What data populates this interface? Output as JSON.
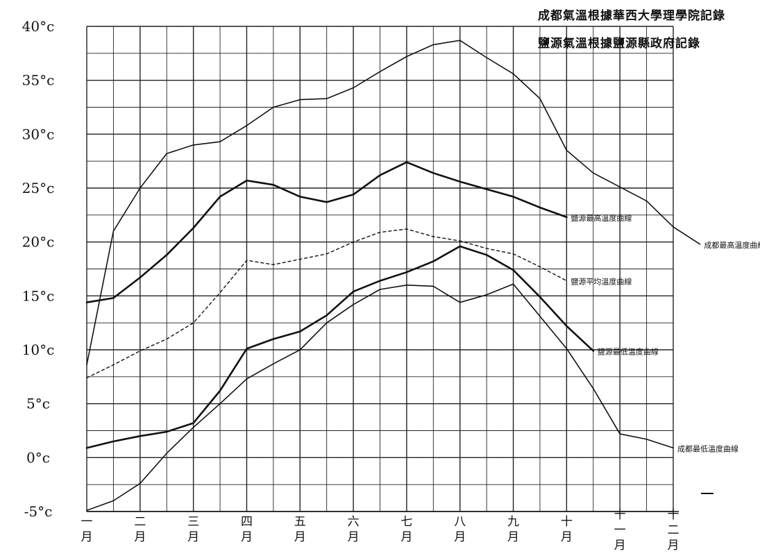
{
  "notes": {
    "source_1": "成都氣溫根據華西大學理學院記錄",
    "source_2": "鹽源氣溫根據鹽源縣政府記錄"
  },
  "chart_data": {
    "type": "line",
    "x_categories": [
      [
        "一",
        "月"
      ],
      [
        "二",
        "月"
      ],
      [
        "三",
        "月"
      ],
      [
        "四",
        "月"
      ],
      [
        "五",
        "月"
      ],
      [
        "六",
        "月"
      ],
      [
        "七",
        "月"
      ],
      [
        "八",
        "月"
      ],
      [
        "九",
        "月"
      ],
      [
        "十",
        "月"
      ],
      [
        "十",
        "一",
        "月"
      ],
      [
        "十",
        "二",
        "月"
      ]
    ],
    "y_ticks": [
      "40°c",
      "35°c",
      "30°c",
      "25°c",
      "20°c",
      "15°c",
      "10°c",
      "5°c",
      "0°c",
      "-5°c"
    ],
    "ylim": [
      -5,
      40
    ],
    "grid": true,
    "series": [
      {
        "name": "成都最高温度曲線",
        "style": "solid-thin",
        "points": [
          [
            0,
            8.6
          ],
          [
            0.5,
            21
          ],
          [
            1,
            25
          ],
          [
            1.5,
            28.2
          ],
          [
            2,
            29
          ],
          [
            2.5,
            29.3
          ],
          [
            3,
            30.8
          ],
          [
            3.5,
            32.5
          ],
          [
            4,
            33.2
          ],
          [
            4.5,
            33.3
          ],
          [
            5,
            34.3
          ],
          [
            5.5,
            35.8
          ],
          [
            6,
            37.2
          ],
          [
            6.5,
            38.3
          ],
          [
            7,
            38.7
          ],
          [
            7.5,
            37.1
          ],
          [
            8,
            35.6
          ],
          [
            8.5,
            33.3
          ],
          [
            9,
            28.5
          ],
          [
            9.5,
            26.4
          ],
          [
            10,
            25.1
          ],
          [
            10.5,
            23.8
          ],
          [
            11,
            21.4
          ],
          [
            11.5,
            19.8
          ]
        ]
      },
      {
        "name": "鹽源最高溫度曲線",
        "style": "solid-bold",
        "points": [
          [
            0,
            14.4
          ],
          [
            0.5,
            14.8
          ],
          [
            1,
            16.7
          ],
          [
            1.5,
            18.8
          ],
          [
            2,
            21.3
          ],
          [
            2.5,
            24.2
          ],
          [
            3,
            25.7
          ],
          [
            3.5,
            25.3
          ],
          [
            4,
            24.2
          ],
          [
            4.5,
            23.7
          ],
          [
            5,
            24.4
          ],
          [
            5.5,
            26.2
          ],
          [
            6,
            27.4
          ],
          [
            6.5,
            26.4
          ],
          [
            7,
            25.6
          ],
          [
            7.5,
            24.9
          ],
          [
            8,
            24.2
          ],
          [
            8.5,
            23.2
          ],
          [
            9,
            22.3
          ]
        ]
      },
      {
        "name": "鹽源平均溫度曲線",
        "style": "dashed",
        "points": [
          [
            0,
            7.4
          ],
          [
            0.5,
            8.6
          ],
          [
            1,
            9.9
          ],
          [
            1.5,
            11
          ],
          [
            2,
            12.5
          ],
          [
            2.5,
            15.3
          ],
          [
            3,
            18.3
          ],
          [
            3.5,
            17.9
          ],
          [
            4,
            18.4
          ],
          [
            4.5,
            18.9
          ],
          [
            5,
            20
          ],
          [
            5.5,
            20.9
          ],
          [
            6,
            21.2
          ],
          [
            6.5,
            20.5
          ],
          [
            7,
            20.1
          ],
          [
            7.5,
            19.4
          ],
          [
            8,
            18.9
          ],
          [
            8.5,
            17.7
          ],
          [
            9,
            16.4
          ]
        ]
      },
      {
        "name": "鹽源最低溫度曲線",
        "style": "solid-bold",
        "points": [
          [
            0,
            0.9
          ],
          [
            0.5,
            1.5
          ],
          [
            1,
            2
          ],
          [
            1.5,
            2.4
          ],
          [
            2,
            3.2
          ],
          [
            2.5,
            6.2
          ],
          [
            3,
            10.1
          ],
          [
            3.5,
            11
          ],
          [
            4,
            11.7
          ],
          [
            4.5,
            13.2
          ],
          [
            5,
            15.4
          ],
          [
            5.5,
            16.4
          ],
          [
            6,
            17.2
          ],
          [
            6.5,
            18.2
          ],
          [
            7,
            19.6
          ],
          [
            7.5,
            18.8
          ],
          [
            8,
            17.4
          ],
          [
            8.5,
            14.9
          ],
          [
            9,
            12.2
          ],
          [
            9.5,
            9.9
          ]
        ]
      },
      {
        "name": "成都最低溫度曲線",
        "style": "solid-thin",
        "points": [
          [
            0,
            -4.9
          ],
          [
            0.5,
            -4
          ],
          [
            1,
            -2.4
          ],
          [
            1.5,
            0.4
          ],
          [
            2,
            2.8
          ],
          [
            2.5,
            5
          ],
          [
            3,
            7.3
          ],
          [
            3.5,
            8.7
          ],
          [
            4,
            10
          ],
          [
            4.5,
            12.5
          ],
          [
            5,
            14.2
          ],
          [
            5.5,
            15.6
          ],
          [
            6,
            16
          ],
          [
            6.5,
            15.9
          ],
          [
            7,
            14.4
          ],
          [
            7.5,
            15.1
          ],
          [
            8,
            16.1
          ],
          [
            8.5,
            13.1
          ],
          [
            9,
            10.1
          ],
          [
            9.5,
            6.4
          ],
          [
            10,
            2.2
          ],
          [
            10.5,
            1.7
          ],
          [
            11,
            0.9
          ]
        ]
      }
    ]
  }
}
